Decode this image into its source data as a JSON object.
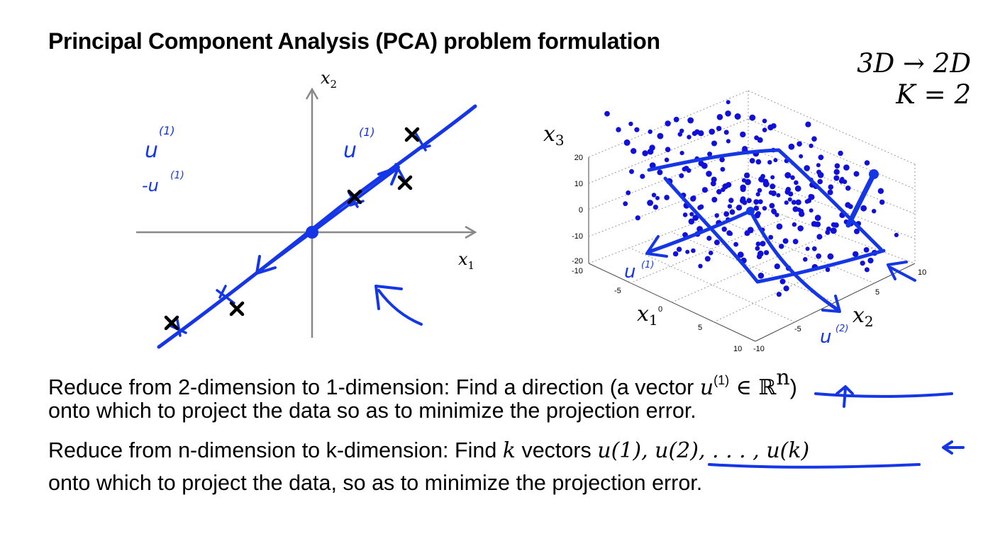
{
  "slide": {
    "title": "Principal Component Analysis (PCA) problem formulation",
    "corner_line1": "3D → 2D",
    "corner_line2": "K = 2"
  },
  "plot2d": {
    "x_axis_label": "x",
    "x_axis_sub": "1",
    "y_axis_label": "x",
    "y_axis_sub": "2",
    "annotations": [
      "u",
      "(1)",
      "-u",
      "(1)",
      "u",
      "(1)"
    ]
  },
  "plot3d": {
    "z_label": "x",
    "z_sub": "3",
    "x_label": "x",
    "x_sub": "1",
    "y_label": "x",
    "y_sub": "2",
    "z_ticks": [
      "20",
      "10",
      "0",
      "-10",
      "-20"
    ],
    "x_ticks": [
      "-10",
      "-5",
      "0",
      "5",
      "10"
    ],
    "y_ticks": [
      "-10",
      "-5",
      "5",
      "10"
    ],
    "annotations": [
      "u",
      "(1)",
      "u",
      "(2)"
    ]
  },
  "text": {
    "line1_a": "Reduce from 2-dimension to 1-dimension: Find a direction (a vector ",
    "line1_math": "u",
    "line1_sup": "(1)",
    "line1_math2": " ∈ ℝ",
    "line1_sup2": "n",
    "line1_b": ")",
    "line2": "onto which to project the data so as to minimize the projection error.",
    "line3_a": "Reduce from n-dimension to k-dimension: Find ",
    "line3_k": "k",
    "line3_b": " vectors ",
    "line3_math": "u(1), u(2), . . . , u(k)",
    "line4": "onto which to project the data, so as to minimize the projection error."
  }
}
